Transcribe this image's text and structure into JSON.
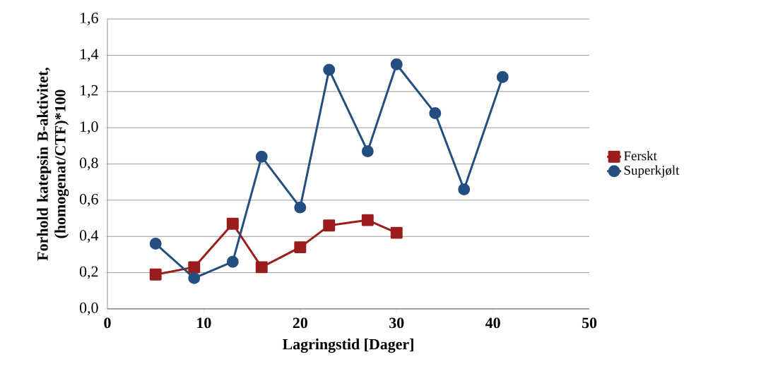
{
  "chart_data": {
    "type": "line",
    "xlabel": "Lagringstid [Dager]",
    "ylabel": "Forhold katepsin B-aktivitet, (homogenat/CTF)*100",
    "series": [
      {
        "name": "Ferskt",
        "color": "#9b1c1c",
        "marker": "square",
        "x": [
          5,
          9,
          13,
          16,
          20,
          23,
          27,
          30
        ],
        "values": [
          0.19,
          0.23,
          0.47,
          0.23,
          0.34,
          0.46,
          0.49,
          0.42
        ]
      },
      {
        "name": "Superkjølt",
        "color": "#234e7f",
        "marker": "circle",
        "x": [
          5,
          9,
          13,
          16,
          20,
          23,
          27,
          30,
          34,
          37,
          41
        ],
        "values": [
          0.36,
          0.17,
          0.26,
          0.84,
          0.56,
          1.32,
          0.87,
          1.35,
          1.08,
          0.66,
          1.28
        ]
      }
    ],
    "xlim": [
      0,
      50
    ],
    "xticks": [
      0,
      10,
      20,
      30,
      40,
      50
    ],
    "ylim": [
      0,
      1.6
    ],
    "yticks": [
      {
        "value": 0,
        "label": "0,0"
      },
      {
        "value": 0.2,
        "label": "0,2"
      },
      {
        "value": 0.4,
        "label": "0,4"
      },
      {
        "value": 0.6,
        "label": "0,6"
      },
      {
        "value": 0.8,
        "label": "0,8"
      },
      {
        "value": 1.0,
        "label": "1,0"
      },
      {
        "value": 1.2,
        "label": "1,2"
      },
      {
        "value": 1.4,
        "label": "1,4"
      },
      {
        "value": 1.6,
        "label": "1,6"
      }
    ],
    "grid": "y",
    "legend": "right",
    "line_style": "solid"
  }
}
